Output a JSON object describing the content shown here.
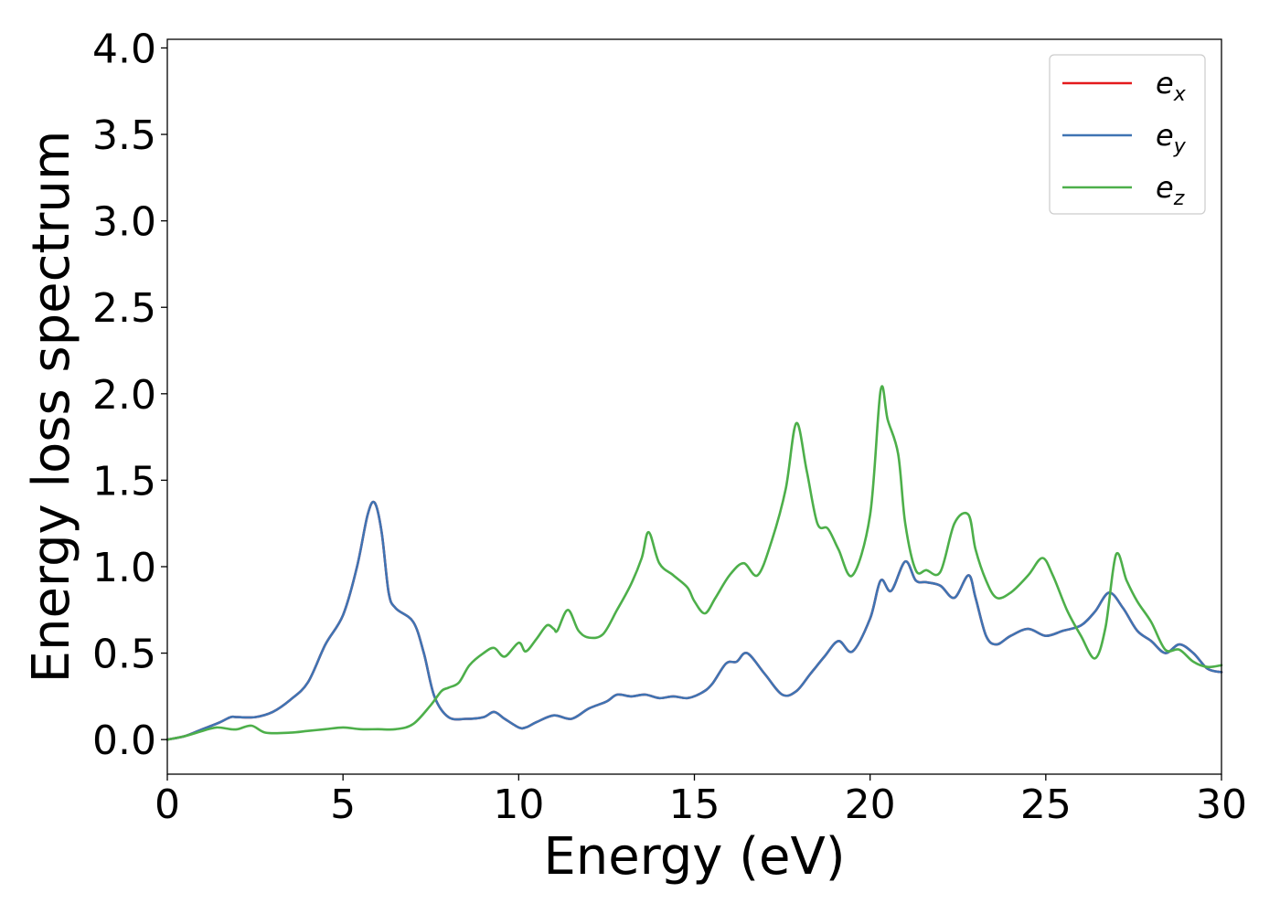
{
  "chart_data": {
    "type": "line",
    "title": "",
    "xlabel": "Energy (eV)",
    "ylabel": "Energy loss spectrum",
    "xlim": [
      0,
      30
    ],
    "ylim": [
      -0.2,
      4.05
    ],
    "x_ticks": [
      0,
      5,
      10,
      15,
      20,
      25,
      30
    ],
    "x_tick_labels": [
      "0",
      "5",
      "10",
      "15",
      "20",
      "25",
      "30"
    ],
    "y_ticks": [
      0.0,
      0.5,
      1.0,
      1.5,
      2.0,
      2.5,
      3.0,
      3.5,
      4.0
    ],
    "y_tick_labels": [
      "0.0",
      "0.5",
      "1.0",
      "1.5",
      "2.0",
      "2.5",
      "3.0",
      "3.5",
      "4.0"
    ],
    "grid": false,
    "legend_position": "top-right",
    "series": [
      {
        "name": "e_x",
        "label_base": "e",
        "label_sub": "x",
        "color": "#e41a1c",
        "x": [
          0,
          0.5,
          1.0,
          1.5,
          1.8,
          2.0,
          2.5,
          3.0,
          3.5,
          4.0,
          4.5,
          5.0,
          5.4,
          5.7,
          5.9,
          6.1,
          6.3,
          6.5,
          7.0,
          7.3,
          7.6,
          8.0,
          8.5,
          9.0,
          9.3,
          9.6,
          10.0,
          10.2,
          10.5,
          11.0,
          11.5,
          12.0,
          12.5,
          12.8,
          13.2,
          13.6,
          14.0,
          14.4,
          14.8,
          15.2,
          15.5,
          15.9,
          16.2,
          16.5,
          17.0,
          17.5,
          17.9,
          18.3,
          18.7,
          19.1,
          19.5,
          20.0,
          20.3,
          20.6,
          21.0,
          21.3,
          21.6,
          22.0,
          22.4,
          22.8,
          23.0,
          23.3,
          23.6,
          24.0,
          24.5,
          25.0,
          25.5,
          26.0,
          26.4,
          26.8,
          27.2,
          27.6,
          28.0,
          28.4,
          28.8,
          29.2,
          29.6,
          30.0
        ],
        "values": [
          0.0,
          0.02,
          0.06,
          0.1,
          0.13,
          0.13,
          0.13,
          0.16,
          0.23,
          0.33,
          0.55,
          0.72,
          1.0,
          1.3,
          1.37,
          1.2,
          0.85,
          0.76,
          0.68,
          0.5,
          0.25,
          0.13,
          0.12,
          0.13,
          0.16,
          0.12,
          0.07,
          0.07,
          0.1,
          0.14,
          0.12,
          0.18,
          0.22,
          0.26,
          0.25,
          0.26,
          0.24,
          0.25,
          0.24,
          0.27,
          0.32,
          0.44,
          0.45,
          0.5,
          0.38,
          0.26,
          0.28,
          0.38,
          0.48,
          0.57,
          0.51,
          0.7,
          0.92,
          0.86,
          1.03,
          0.92,
          0.91,
          0.89,
          0.82,
          0.95,
          0.82,
          0.6,
          0.55,
          0.6,
          0.64,
          0.6,
          0.63,
          0.66,
          0.74,
          0.85,
          0.76,
          0.63,
          0.57,
          0.5,
          0.55,
          0.5,
          0.41,
          0.39
        ]
      },
      {
        "name": "e_y",
        "label_base": "e",
        "label_sub": "y",
        "color": "#3f74b3",
        "x": [
          0,
          0.5,
          1.0,
          1.5,
          1.8,
          2.0,
          2.5,
          3.0,
          3.5,
          4.0,
          4.5,
          5.0,
          5.4,
          5.7,
          5.9,
          6.1,
          6.3,
          6.5,
          7.0,
          7.3,
          7.6,
          8.0,
          8.5,
          9.0,
          9.3,
          9.6,
          10.0,
          10.2,
          10.5,
          11.0,
          11.5,
          12.0,
          12.5,
          12.8,
          13.2,
          13.6,
          14.0,
          14.4,
          14.8,
          15.2,
          15.5,
          15.9,
          16.2,
          16.5,
          17.0,
          17.5,
          17.9,
          18.3,
          18.7,
          19.1,
          19.5,
          20.0,
          20.3,
          20.6,
          21.0,
          21.3,
          21.6,
          22.0,
          22.4,
          22.8,
          23.0,
          23.3,
          23.6,
          24.0,
          24.5,
          25.0,
          25.5,
          26.0,
          26.4,
          26.8,
          27.2,
          27.6,
          28.0,
          28.4,
          28.8,
          29.2,
          29.6,
          30.0
        ],
        "values": [
          0.0,
          0.02,
          0.06,
          0.1,
          0.13,
          0.13,
          0.13,
          0.16,
          0.23,
          0.33,
          0.55,
          0.72,
          1.0,
          1.3,
          1.37,
          1.2,
          0.85,
          0.76,
          0.68,
          0.5,
          0.25,
          0.13,
          0.12,
          0.13,
          0.16,
          0.12,
          0.07,
          0.07,
          0.1,
          0.14,
          0.12,
          0.18,
          0.22,
          0.26,
          0.25,
          0.26,
          0.24,
          0.25,
          0.24,
          0.27,
          0.32,
          0.44,
          0.45,
          0.5,
          0.38,
          0.26,
          0.28,
          0.38,
          0.48,
          0.57,
          0.51,
          0.7,
          0.92,
          0.86,
          1.03,
          0.92,
          0.91,
          0.89,
          0.82,
          0.95,
          0.82,
          0.6,
          0.55,
          0.6,
          0.64,
          0.6,
          0.63,
          0.66,
          0.74,
          0.85,
          0.76,
          0.63,
          0.57,
          0.5,
          0.55,
          0.5,
          0.41,
          0.39
        ]
      },
      {
        "name": "e_z",
        "label_base": "e",
        "label_sub": "z",
        "color": "#4daf4a",
        "x": [
          0,
          0.5,
          1.0,
          1.4,
          1.8,
          2.0,
          2.4,
          2.8,
          3.5,
          4.0,
          4.5,
          5.0,
          5.5,
          6.0,
          6.5,
          7.0,
          7.5,
          7.8,
          8.0,
          8.3,
          8.6,
          9.0,
          9.3,
          9.6,
          10.0,
          10.2,
          10.5,
          10.8,
          11.0,
          11.1,
          11.4,
          11.7,
          12.0,
          12.4,
          12.8,
          13.2,
          13.5,
          13.7,
          14.0,
          14.4,
          14.8,
          15.0,
          15.3,
          15.6,
          16.0,
          16.4,
          16.8,
          17.2,
          17.6,
          17.9,
          18.2,
          18.5,
          18.8,
          19.1,
          19.5,
          20.0,
          20.3,
          20.5,
          20.8,
          21.0,
          21.3,
          21.6,
          22.0,
          22.4,
          22.8,
          23.0,
          23.3,
          23.6,
          24.0,
          24.5,
          24.9,
          25.2,
          25.6,
          26.0,
          26.4,
          26.7,
          27.0,
          27.3,
          27.6,
          28.0,
          28.4,
          28.8,
          29.2,
          29.6,
          30.0
        ],
        "values": [
          0.0,
          0.02,
          0.05,
          0.07,
          0.06,
          0.06,
          0.08,
          0.04,
          0.04,
          0.05,
          0.06,
          0.07,
          0.06,
          0.06,
          0.06,
          0.09,
          0.2,
          0.28,
          0.3,
          0.33,
          0.43,
          0.5,
          0.53,
          0.48,
          0.56,
          0.51,
          0.58,
          0.66,
          0.64,
          0.63,
          0.75,
          0.63,
          0.59,
          0.61,
          0.75,
          0.9,
          1.05,
          1.2,
          1.02,
          0.95,
          0.88,
          0.8,
          0.73,
          0.82,
          0.95,
          1.02,
          0.95,
          1.15,
          1.45,
          1.83,
          1.55,
          1.25,
          1.22,
          1.1,
          0.95,
          1.3,
          2.02,
          1.85,
          1.65,
          1.25,
          0.98,
          0.98,
          0.97,
          1.25,
          1.3,
          1.1,
          0.92,
          0.82,
          0.85,
          0.95,
          1.05,
          0.95,
          0.75,
          0.6,
          0.47,
          0.65,
          1.07,
          0.92,
          0.8,
          0.68,
          0.52,
          0.52,
          0.45,
          0.42,
          0.43
        ]
      }
    ]
  }
}
